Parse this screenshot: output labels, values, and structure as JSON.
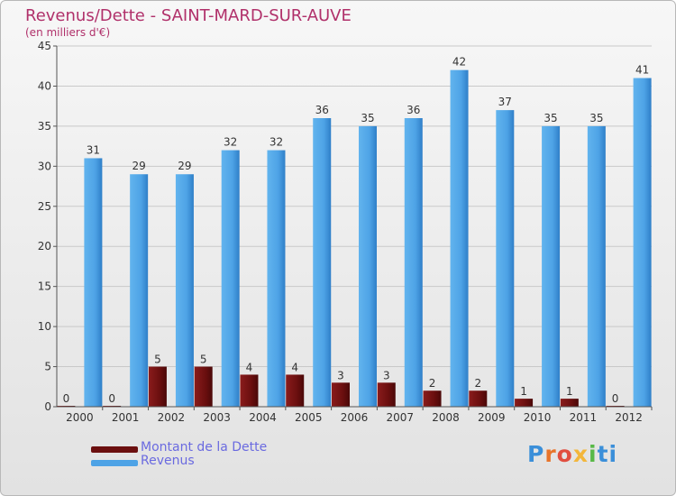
{
  "header": {
    "title": "Revenus/Dette - SAINT-MARD-SUR-AUVE",
    "subtitle": "(en milliers d'€)"
  },
  "legend": {
    "items": [
      {
        "label": "Montant de la Dette",
        "color": "#6b0f0f"
      },
      {
        "label": "Revenus",
        "color": "#4ea3e6"
      }
    ]
  },
  "logo": {
    "text": "Proxiti"
  },
  "chart_data": {
    "type": "bar",
    "title": "Revenus/Dette - SAINT-MARD-SUR-AUVE",
    "ylabel": "(en milliers d'€)",
    "xlabel": "",
    "ylim": [
      0,
      45
    ],
    "yticks": [
      0,
      5,
      10,
      15,
      20,
      25,
      30,
      35,
      40,
      45
    ],
    "grid": true,
    "categories": [
      "2000",
      "2001",
      "2002",
      "2003",
      "2004",
      "2005",
      "2006",
      "2007",
      "2008",
      "2009",
      "2010",
      "2011",
      "2012"
    ],
    "series": [
      {
        "name": "Montant de la Dette",
        "color": "#6b0f0f",
        "values": [
          0,
          0,
          5,
          5,
          4,
          4,
          3,
          3,
          2,
          2,
          1,
          1,
          0
        ]
      },
      {
        "name": "Revenus",
        "color": "#4ea3e6",
        "values": [
          31,
          29,
          29,
          32,
          32,
          36,
          35,
          36,
          42,
          37,
          35,
          35,
          41
        ]
      }
    ]
  }
}
